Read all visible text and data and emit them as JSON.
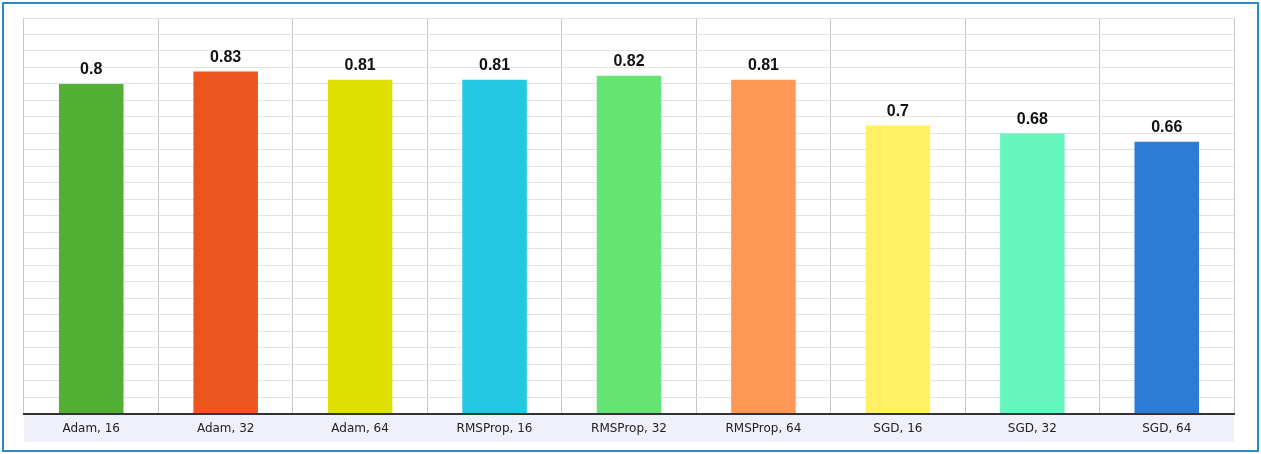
{
  "chart_data": {
    "type": "bar",
    "categories": [
      "Adam, 16",
      "Adam, 32",
      "Adam, 64",
      "RMSProp, 16",
      "RMSProp, 32",
      "RMSProp, 64",
      "SGD, 16",
      "SGD, 32",
      "SGD, 64"
    ],
    "values": [
      0.8,
      0.83,
      0.81,
      0.81,
      0.82,
      0.81,
      0.7,
      0.68,
      0.66
    ],
    "colors": [
      "#52b035",
      "#ea561e",
      "#dde000",
      "#24c8e2",
      "#64e472",
      "#ff9757",
      "#fff064",
      "#66f7c0",
      "#2e7bd6"
    ],
    "ylim": [
      0,
      0.96
    ],
    "yticks": [
      {
        "value": 0,
        "label": null
      },
      {
        "value": 0.04,
        "label": null
      },
      {
        "value": 0.08,
        "label": null
      },
      {
        "value": 0.12,
        "label": null
      },
      {
        "value": 0.16,
        "label": null
      },
      {
        "value": 0.2,
        "label": null
      },
      {
        "value": 0.24,
        "label": null
      },
      {
        "value": 0.28,
        "label": null
      },
      {
        "value": 0.32,
        "label": null
      },
      {
        "value": 0.36,
        "label": null
      },
      {
        "value": 0.4,
        "label": null
      },
      {
        "value": 0.44,
        "label": null
      },
      {
        "value": 0.48,
        "label": null
      },
      {
        "value": 0.52,
        "label": null
      },
      {
        "value": 0.56,
        "label": null
      },
      {
        "value": 0.6,
        "label": null
      },
      {
        "value": 0.64,
        "label": null
      },
      {
        "value": 0.68,
        "label": null
      },
      {
        "value": 0.72,
        "label": null
      },
      {
        "value": 0.76,
        "label": null
      },
      {
        "value": 0.8,
        "label": null
      },
      {
        "value": 0.84,
        "label": null
      },
      {
        "value": 0.88,
        "label": null
      },
      {
        "value": 0.92,
        "label": null
      },
      {
        "value": 0.96,
        "label": null
      }
    ],
    "grid": true,
    "data_labels": true,
    "tick_labels": "x"
  }
}
